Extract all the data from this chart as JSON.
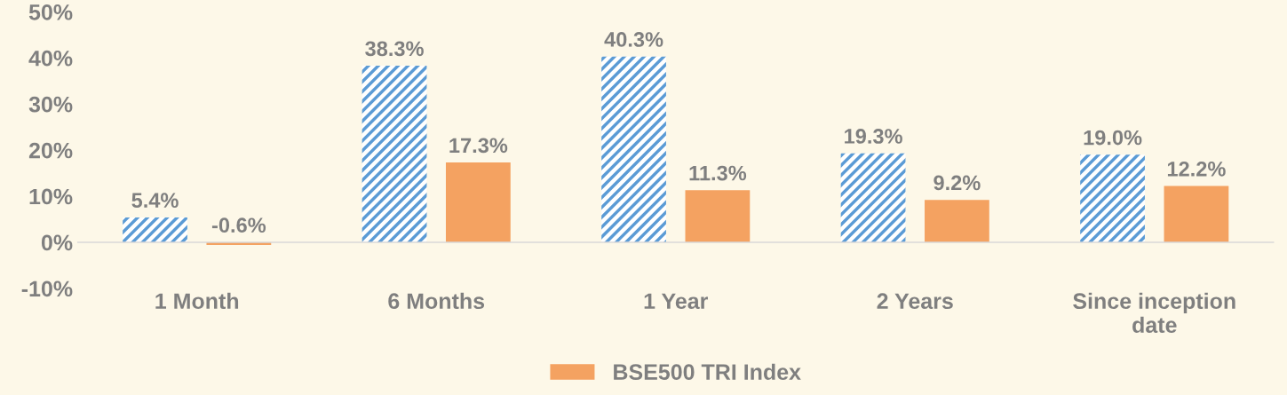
{
  "chart_data": {
    "type": "bar",
    "categories": [
      "1 Month",
      "6 Months",
      "1 Year",
      "2 Years",
      "Since inception date"
    ],
    "series": [
      {
        "color": "#5b9bd5",
        "values": [
          5.4,
          38.3,
          40.3,
          19.3,
          19.0
        ],
        "value_labels": [
          "5.4%",
          "38.3%",
          "40.3%",
          "19.3%",
          "19.0%"
        ]
      },
      {
        "name": "BSE500 TRI Index",
        "color": "#f4a261",
        "values": [
          -0.6,
          17.3,
          11.3,
          9.2,
          12.2
        ],
        "value_labels": [
          "-0.6%",
          "17.3%",
          "11.3%",
          "9.2%",
          "12.2%"
        ]
      }
    ],
    "ylim": [
      -10,
      50
    ],
    "yticks": [
      {
        "value": -10,
        "label": "-10%"
      },
      {
        "value": 0,
        "label": "0%"
      },
      {
        "value": 10,
        "label": "10%"
      },
      {
        "value": 20,
        "label": "20%"
      },
      {
        "value": 30,
        "label": "30%"
      },
      {
        "value": 40,
        "label": "40%"
      },
      {
        "value": 50,
        "label": "50%"
      }
    ],
    "grid": false,
    "legend": "bottom"
  }
}
